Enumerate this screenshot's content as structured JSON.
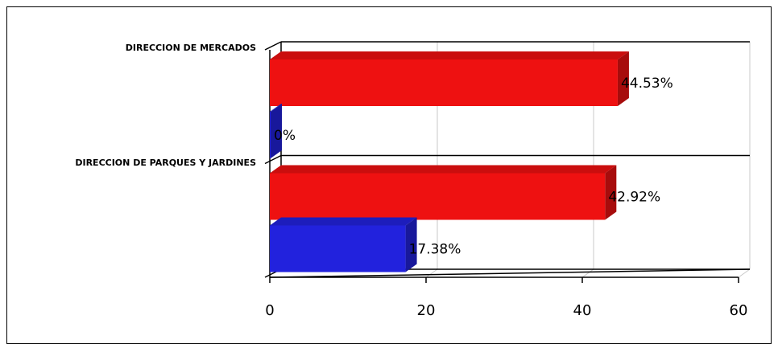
{
  "chart_data": {
    "type": "bar",
    "orientation": "horizontal",
    "categories": [
      "DIRECCION DE MERCADOS",
      "DIRECCION DE PARQUES Y JARDINES"
    ],
    "series": [
      {
        "values": [
          44.53,
          42.92
        ],
        "labels": [
          "44.53%",
          "42.92%"
        ],
        "color": "#ee1111"
      },
      {
        "values": [
          0,
          17.38
        ],
        "labels": [
          "0%",
          "17.38%"
        ],
        "color": "#2222dd"
      }
    ],
    "xlim": [
      0,
      60
    ],
    "xticks": [
      0,
      20,
      40,
      60
    ],
    "xtick_labels": [
      "0",
      "20",
      "40",
      "60"
    ],
    "grid": true,
    "style": "3d"
  }
}
